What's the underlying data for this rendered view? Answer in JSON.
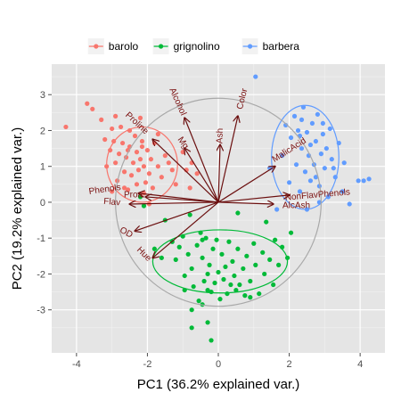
{
  "chart_data": {
    "type": "scatter",
    "subtype": "pca-biplot",
    "xlabel": "PC1 (36.2% explained var.)",
    "ylabel": "PC2 (19.2% explained var.)",
    "xlim": [
      -4.7,
      4.7
    ],
    "ylim": [
      -4.2,
      3.85
    ],
    "xticks": [
      -4,
      -2,
      0,
      2,
      4
    ],
    "yticks": [
      -3,
      -2,
      -1,
      0,
      1,
      2,
      3
    ],
    "grid": true,
    "background_color": "#e5e5e5",
    "legend_position": "top",
    "series": [
      {
        "name": "barolo",
        "color": "#f8766d",
        "ellipse": {
          "cx": -2.15,
          "cy": 1.05,
          "rx": 1.0,
          "ry": 1.05
        },
        "points": [
          [
            -4.3,
            2.1
          ],
          [
            -3.7,
            2.75
          ],
          [
            -3.55,
            2.6
          ],
          [
            -3.3,
            2.3
          ],
          [
            -3.2,
            1.75
          ],
          [
            -3.15,
            1.0
          ],
          [
            -3.05,
            1.45
          ],
          [
            -3.0,
            2.05
          ],
          [
            -2.95,
            1.7
          ],
          [
            -2.9,
            1.1
          ],
          [
            -2.85,
            0.6
          ],
          [
            -2.8,
            1.35
          ],
          [
            -2.75,
            2.1
          ],
          [
            -2.7,
            1.65
          ],
          [
            -2.65,
            0.85
          ],
          [
            -2.6,
            1.25
          ],
          [
            -2.55,
            0.35
          ],
          [
            -2.5,
            1.55
          ],
          [
            -2.45,
            0.75
          ],
          [
            -2.4,
            1.1
          ],
          [
            -2.35,
            1.85
          ],
          [
            -2.3,
            1.4
          ],
          [
            -2.3,
            0.5
          ],
          [
            -2.25,
            0.9
          ],
          [
            -2.2,
            1.2
          ],
          [
            -2.15,
            1.7
          ],
          [
            -2.1,
            1.0
          ],
          [
            -2.05,
            0.55
          ],
          [
            -2.0,
            1.45
          ],
          [
            -1.95,
            0.8
          ],
          [
            -1.9,
            1.2
          ],
          [
            -1.85,
            0.4
          ],
          [
            -1.8,
            1.65
          ],
          [
            -1.7,
            1.0
          ],
          [
            -1.6,
            0.7
          ],
          [
            -1.5,
            1.3
          ],
          [
            -1.4,
            1.1
          ],
          [
            -1.3,
            0.9
          ],
          [
            -1.2,
            0.5
          ],
          [
            -1.0,
            1.4
          ],
          [
            -0.9,
            0.9
          ],
          [
            -0.8,
            0.4
          ],
          [
            -0.75,
            1.1
          ],
          [
            -0.6,
            0.8
          ],
          [
            -2.9,
            2.4
          ],
          [
            -2.5,
            2.0
          ],
          [
            -2.2,
            2.35
          ],
          [
            -1.7,
            1.9
          ],
          [
            -3.0,
            0.3
          ],
          [
            -2.1,
            0.25
          ],
          [
            -1.95,
            -0.05
          ],
          [
            -2.55,
            1.45
          ],
          [
            -2.15,
            1.55
          ],
          [
            -2.65,
            0.4
          ]
        ]
      },
      {
        "name": "grignolino",
        "color": "#00ba38",
        "ellipse": {
          "cx": 0.05,
          "cy": -1.65,
          "rx": 1.9,
          "ry": 0.88
        },
        "points": [
          [
            -2.2,
            0.15
          ],
          [
            -2.1,
            -0.1
          ],
          [
            -1.8,
            -1.3
          ],
          [
            -1.6,
            -1.55
          ],
          [
            -1.5,
            -0.5
          ],
          [
            -1.3,
            -1.1
          ],
          [
            -1.2,
            -1.6
          ],
          [
            -1.0,
            -0.95
          ],
          [
            -0.95,
            -2.05
          ],
          [
            -0.85,
            -1.45
          ],
          [
            -0.8,
            -0.35
          ],
          [
            -0.75,
            -1.85
          ],
          [
            -0.7,
            -2.35
          ],
          [
            -0.6,
            -1.2
          ],
          [
            -0.55,
            -2.75
          ],
          [
            -0.5,
            -0.85
          ],
          [
            -0.45,
            -1.55
          ],
          [
            -0.4,
            -2.2
          ],
          [
            -0.35,
            -1.0
          ],
          [
            -0.3,
            -2.0
          ],
          [
            -0.3,
            -3.35
          ],
          [
            -0.25,
            -1.75
          ],
          [
            -0.2,
            -2.5
          ],
          [
            -0.15,
            -1.3
          ],
          [
            -0.1,
            -2.25
          ],
          [
            -0.05,
            -1.05
          ],
          [
            0.0,
            -1.95
          ],
          [
            0.05,
            -2.7
          ],
          [
            0.1,
            -1.45
          ],
          [
            0.15,
            -2.15
          ],
          [
            0.2,
            -1.8
          ],
          [
            0.25,
            -2.55
          ],
          [
            0.3,
            -1.1
          ],
          [
            0.35,
            -2.3
          ],
          [
            0.4,
            -1.65
          ],
          [
            0.45,
            -2.05
          ],
          [
            0.5,
            -2.45
          ],
          [
            0.55,
            -1.3
          ],
          [
            0.6,
            -2.3
          ],
          [
            0.7,
            -1.85
          ],
          [
            0.75,
            -2.6
          ],
          [
            0.8,
            -1.5
          ],
          [
            0.9,
            -2.2
          ],
          [
            1.0,
            -1.15
          ],
          [
            1.05,
            -1.75
          ],
          [
            1.15,
            -2.55
          ],
          [
            1.25,
            -1.4
          ],
          [
            1.3,
            -2.0
          ],
          [
            1.45,
            -1.6
          ],
          [
            1.55,
            -2.3
          ],
          [
            1.6,
            -1.05
          ],
          [
            1.7,
            -1.75
          ],
          [
            1.8,
            -1.25
          ],
          [
            1.95,
            -1.55
          ],
          [
            2.05,
            -0.85
          ],
          [
            -0.45,
            -2.85
          ],
          [
            -0.75,
            -3.0
          ],
          [
            -1.1,
            -1.25
          ],
          [
            -0.3,
            -2.45
          ],
          [
            0.9,
            -2.65
          ],
          [
            -0.45,
            -1.05
          ],
          [
            -0.2,
            -3.85
          ],
          [
            -0.75,
            -3.5
          ],
          [
            -0.95,
            -2.45
          ],
          [
            1.35,
            -0.55
          ],
          [
            0.55,
            -0.3
          ]
        ]
      },
      {
        "name": "barbera",
        "color": "#619cff",
        "ellipse": {
          "cx": 2.45,
          "cy": 1.25,
          "rx": 0.95,
          "ry": 1.45
        },
        "points": [
          [
            1.05,
            3.5
          ],
          [
            1.45,
            0.95
          ],
          [
            1.65,
            -0.2
          ],
          [
            1.8,
            1.3
          ],
          [
            1.9,
            2.15
          ],
          [
            2.0,
            0.55
          ],
          [
            2.05,
            1.8
          ],
          [
            2.15,
            2.4
          ],
          [
            2.2,
            1.05
          ],
          [
            2.25,
            2.0
          ],
          [
            2.3,
            0.3
          ],
          [
            2.35,
            1.5
          ],
          [
            2.4,
            2.65
          ],
          [
            2.45,
            0.85
          ],
          [
            2.5,
            1.95
          ],
          [
            2.55,
            1.3
          ],
          [
            2.6,
            0.6
          ],
          [
            2.65,
            2.2
          ],
          [
            2.7,
            1.05
          ],
          [
            2.75,
            1.7
          ],
          [
            2.8,
            2.45
          ],
          [
            2.85,
            0.45
          ],
          [
            2.9,
            1.35
          ],
          [
            2.95,
            1.9
          ],
          [
            3.0,
            0.95
          ],
          [
            3.05,
            1.5
          ],
          [
            3.1,
            0.15
          ],
          [
            3.15,
            2.05
          ],
          [
            3.2,
            1.2
          ],
          [
            3.3,
            0.7
          ],
          [
            3.4,
            1.65
          ],
          [
            3.5,
            0.3
          ],
          [
            3.55,
            1.1
          ],
          [
            3.7,
            -0.05
          ],
          [
            3.95,
            0.6
          ],
          [
            4.1,
            0.6
          ],
          [
            4.25,
            0.65
          ],
          [
            2.6,
            1.6
          ],
          [
            2.75,
            0.7
          ],
          [
            2.35,
            2.3
          ],
          [
            2.95,
            2.2
          ],
          [
            3.25,
            0.95
          ],
          [
            2.85,
            0.0
          ],
          [
            2.5,
            -0.2
          ],
          [
            2.3,
            1.85
          ]
        ]
      }
    ],
    "circle": {
      "cx": 0,
      "cy": 0,
      "r": 2.9,
      "color": "#a9a9a9"
    },
    "loadings": [
      {
        "label": "Alcohol",
        "x": -0.95,
        "y": 2.35,
        "label_x": -1.15,
        "label_y": 2.8,
        "label_angle": 66
      },
      {
        "label": "Color",
        "x": 0.55,
        "y": 2.4,
        "label_x": 0.68,
        "label_y": 2.88,
        "label_angle": -76
      },
      {
        "label": "Proline",
        "x": -1.85,
        "y": 1.75,
        "label_x": -2.3,
        "label_y": 2.2,
        "label_angle": 43
      },
      {
        "label": "Mg",
        "x": -0.95,
        "y": 1.5,
        "label_x": -1.0,
        "label_y": 1.65,
        "label_angle": 55
      },
      {
        "label": "Ash",
        "x": 0.05,
        "y": 1.6,
        "label_x": 0.05,
        "label_y": 1.85,
        "label_angle": -88
      },
      {
        "label": "MalicAcid",
        "x": 1.6,
        "y": 1.0,
        "label_x": 2.0,
        "label_y": 1.45,
        "label_angle": -32
      },
      {
        "label": "NonFlavPhenols",
        "x": 2.0,
        "y": 0.2,
        "label_x": 2.8,
        "label_y": 0.2,
        "label_angle": -5
      },
      {
        "label": "AlcAsh",
        "x": 1.55,
        "y": -0.05,
        "label_x": 2.2,
        "label_y": -0.1,
        "label_angle": 0
      },
      {
        "label": "Phenols",
        "x": -2.25,
        "y": 0.25,
        "label_x": -3.2,
        "label_y": 0.35,
        "label_angle": -8
      },
      {
        "label": "Proa",
        "x": -2.05,
        "y": 0.15,
        "label_x": -2.4,
        "label_y": 0.2,
        "label_angle": 0
      },
      {
        "label": "Flav",
        "x": -2.5,
        "y": -0.05,
        "label_x": -3.0,
        "label_y": 0.0,
        "label_angle": 5
      },
      {
        "label": "OD",
        "x": -2.35,
        "y": -0.8,
        "label_x": -2.6,
        "label_y": -0.85,
        "label_angle": 28
      },
      {
        "label": "Hue",
        "x": -1.85,
        "y": -1.55,
        "label_x": -2.1,
        "label_y": -1.45,
        "label_angle": 45
      }
    ],
    "arrow_color": "#6b0f0f"
  }
}
